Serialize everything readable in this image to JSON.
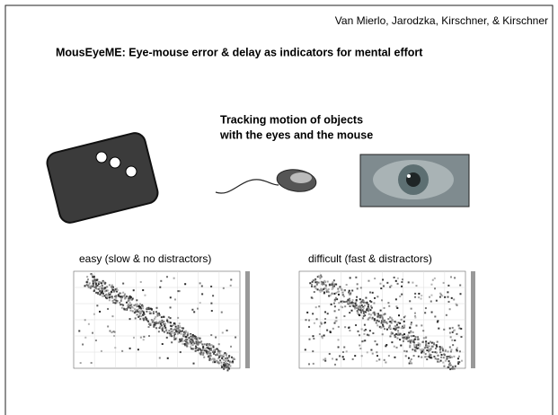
{
  "header": {
    "authors": "Van Mierlo, Jarodzka, Kirschner, & Kirschner",
    "title": "MousEyeME: Eye-mouse error & delay as indicators for mental effort"
  },
  "tracking": {
    "lines": [
      "Tracking motion of objects",
      "with the eyes and the mouse"
    ]
  },
  "panels": [
    {
      "label": "easy (slow & no distractors)"
    },
    {
      "label": "difficult (fast & distractors)"
    }
  ]
}
